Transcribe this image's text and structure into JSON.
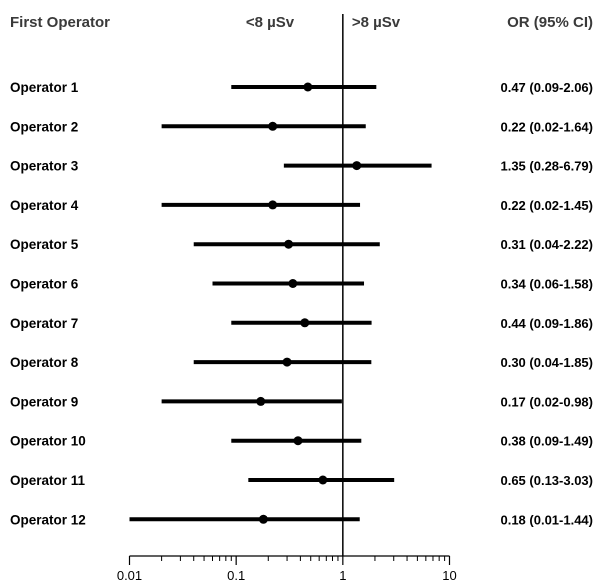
{
  "header": {
    "first_operator": "First Operator",
    "lt_label": "<8 µSv",
    "gt_label": ">8 µSv",
    "or_label": "OR (95% CI)"
  },
  "chart_data": {
    "type": "forest",
    "xscale": "log",
    "xlim": [
      0.01,
      10
    ],
    "reference_line": 1,
    "x_ticks": [
      0.01,
      0.1,
      1,
      10
    ],
    "x_tick_labels": [
      "0.01",
      "0.1",
      "1",
      "10"
    ],
    "grid": false,
    "rows": [
      {
        "label": "Operator 1",
        "or": 0.47,
        "lower": 0.09,
        "upper": 2.06,
        "text": "0.47 (0.09-2.06)"
      },
      {
        "label": "Operator 2",
        "or": 0.22,
        "lower": 0.02,
        "upper": 1.64,
        "text": "0.22 (0.02-1.64)"
      },
      {
        "label": "Operator 3",
        "or": 1.35,
        "lower": 0.28,
        "upper": 6.79,
        "text": "1.35 (0.28-6.79)"
      },
      {
        "label": "Operator 4",
        "or": 0.22,
        "lower": 0.02,
        "upper": 1.45,
        "text": "0.22 (0.02-1.45)"
      },
      {
        "label": "Operator 5",
        "or": 0.31,
        "lower": 0.04,
        "upper": 2.22,
        "text": "0.31 (0.04-2.22)"
      },
      {
        "label": "Operator 6",
        "or": 0.34,
        "lower": 0.06,
        "upper": 1.58,
        "text": "0.34 (0.06-1.58)"
      },
      {
        "label": "Operator 7",
        "or": 0.44,
        "lower": 0.09,
        "upper": 1.86,
        "text": "0.44 (0.09-1.86)"
      },
      {
        "label": "Operator 8",
        "or": 0.3,
        "lower": 0.04,
        "upper": 1.85,
        "text": "0.30 (0.04-1.85)"
      },
      {
        "label": "Operator 9",
        "or": 0.17,
        "lower": 0.02,
        "upper": 0.98,
        "text": "0.17 (0.02-0.98)"
      },
      {
        "label": "Operator 10",
        "or": 0.38,
        "lower": 0.09,
        "upper": 1.49,
        "text": "0.38 (0.09-1.49)"
      },
      {
        "label": "Operator 11",
        "or": 0.65,
        "lower": 0.13,
        "upper": 3.03,
        "text": "0.65 (0.13-3.03)"
      },
      {
        "label": "Operator 12",
        "or": 0.18,
        "lower": 0.01,
        "upper": 1.44,
        "text": "0.18 (0.01-1.44)"
      }
    ]
  }
}
